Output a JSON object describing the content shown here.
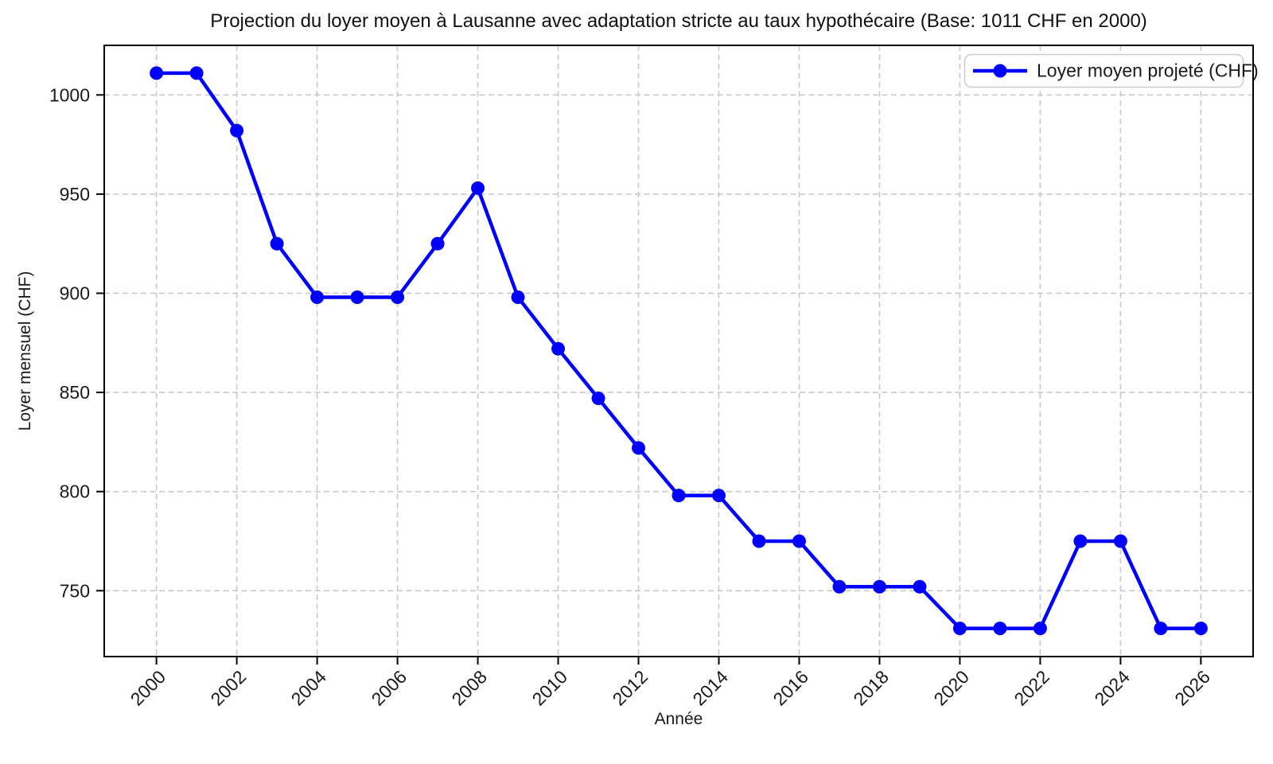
{
  "chart_data": {
    "type": "line",
    "title": "Projection du loyer moyen à Lausanne avec adaptation stricte au taux hypothécaire (Base: 1011 CHF en 2000)",
    "xlabel": "Année",
    "ylabel": "Loyer mensuel (CHF)",
    "legend": {
      "position": "upper right",
      "entries": [
        "Loyer moyen projeté (CHF)"
      ]
    },
    "x": [
      2000,
      2001,
      2002,
      2003,
      2004,
      2005,
      2006,
      2007,
      2008,
      2009,
      2010,
      2011,
      2012,
      2013,
      2014,
      2015,
      2016,
      2017,
      2018,
      2019,
      2020,
      2021,
      2022,
      2023,
      2024,
      2025,
      2026
    ],
    "series": [
      {
        "name": "Loyer moyen projeté (CHF)",
        "color": "#0000ff",
        "marker": "circle",
        "values": [
          1011,
          1011,
          982,
          925,
          898,
          898,
          898,
          925,
          953,
          898,
          872,
          847,
          822,
          798,
          798,
          775,
          775,
          752,
          752,
          752,
          731,
          731,
          731,
          775,
          775,
          731,
          731
        ]
      }
    ],
    "xticks": [
      2000,
      2002,
      2004,
      2006,
      2008,
      2010,
      2012,
      2014,
      2016,
      2018,
      2020,
      2022,
      2024,
      2026
    ],
    "yticks": [
      750,
      800,
      850,
      900,
      950,
      1000
    ],
    "xlim": [
      1998.7,
      2027.3
    ],
    "ylim": [
      716.8,
      1025.0
    ],
    "grid": true,
    "grid_color": "#c9c9c9",
    "axis_color": "#000000",
    "background": "#ffffff"
  }
}
